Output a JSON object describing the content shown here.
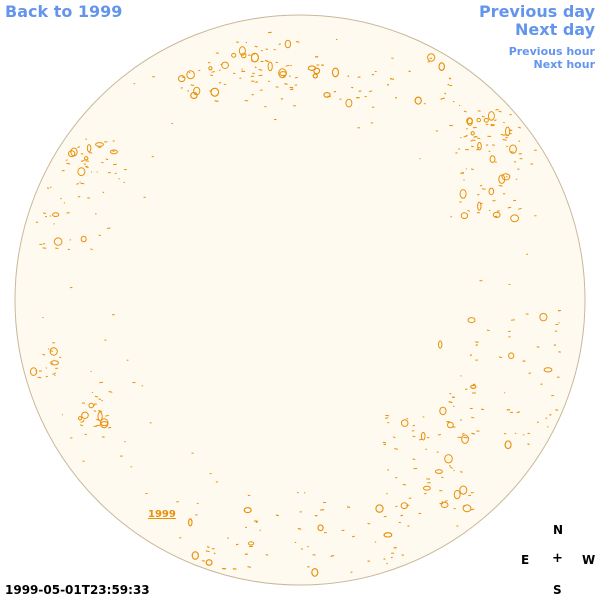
{
  "nav": {
    "back": "Back to 1999",
    "previous_day": "Previous day",
    "next_day": "Next day",
    "previous_hour": "Previous hour",
    "next_hour": "Next hour"
  },
  "compass": {
    "north": "N",
    "east": "E",
    "center": "+",
    "west": "W",
    "south": "S"
  },
  "timestamp": "1999-05-01T23:59:33",
  "year_label": "1999",
  "colors": {
    "disk_fill": "#fffaf0",
    "disk_edge": "#c8b89a",
    "contour": "#e8900a",
    "link": "#6495ed"
  }
}
